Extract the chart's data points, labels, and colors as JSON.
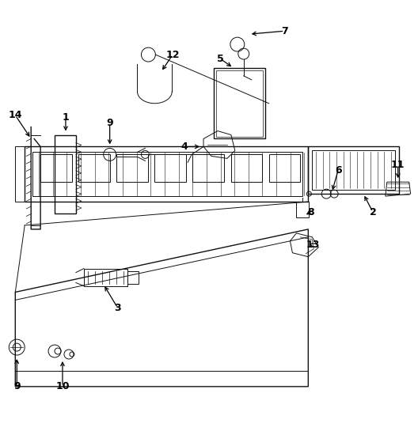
{
  "background_color": "#ffffff",
  "line_color": "#111111",
  "label_color": "#000000",
  "figsize": [
    5.28,
    5.4
  ],
  "dpi": 100
}
